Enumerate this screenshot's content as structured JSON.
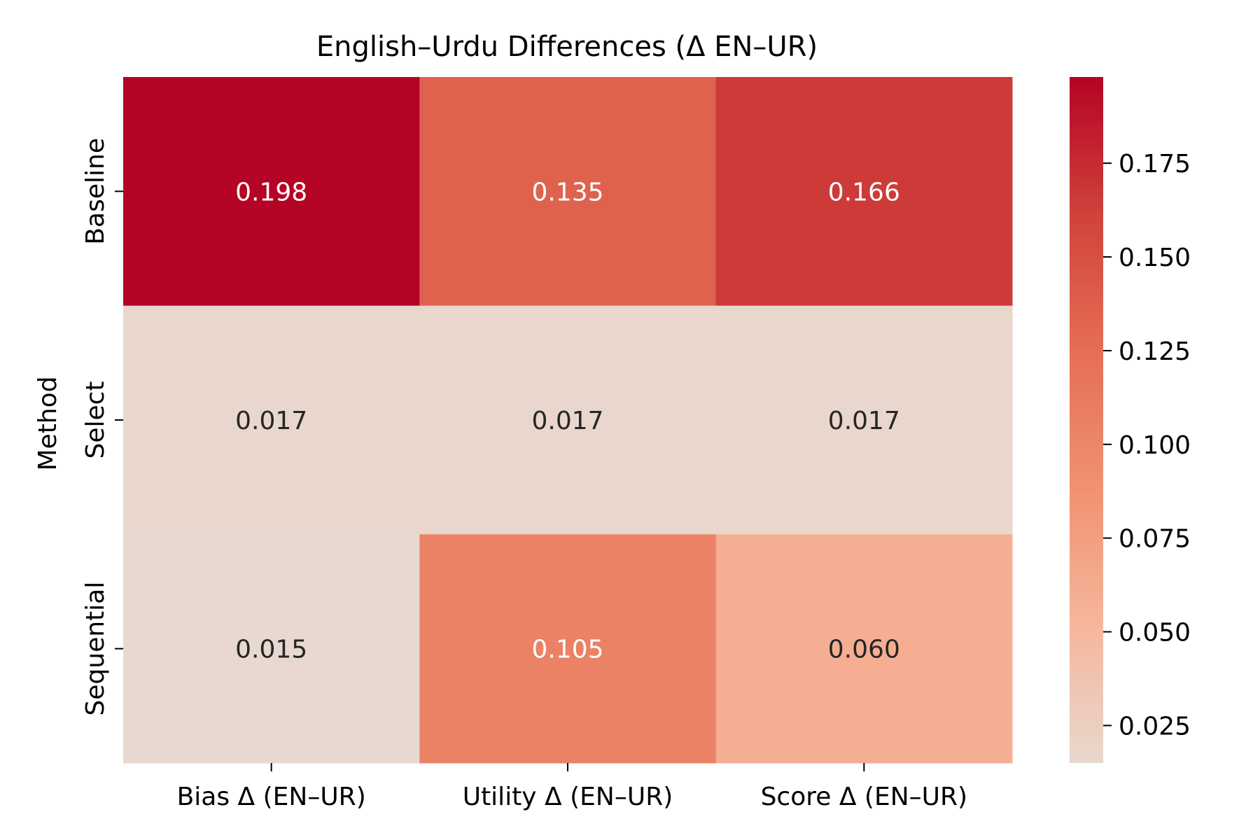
{
  "chart_data": {
    "type": "heatmap",
    "title": "English–Urdu Differences (Δ EN–UR)",
    "xlabel": "",
    "ylabel": "Method",
    "x_categories": [
      "Bias Δ (EN–UR)",
      "Utility Δ (EN–UR)",
      "Score Δ (EN–UR)"
    ],
    "y_categories": [
      "Baseline",
      "Select",
      "Sequential"
    ],
    "values": [
      [
        0.198,
        0.135,
        0.166
      ],
      [
        0.017,
        0.017,
        0.017
      ],
      [
        0.015,
        0.105,
        0.06
      ]
    ],
    "cell_labels": [
      [
        "0.198",
        "0.135",
        "0.166"
      ],
      [
        "0.017",
        "0.017",
        "0.017"
      ],
      [
        "0.015",
        "0.105",
        "0.060"
      ]
    ],
    "colorbar": {
      "vmin": 0.015,
      "vmax": 0.198,
      "ticks": [
        0.025,
        0.05,
        0.075,
        0.1,
        0.125,
        0.15,
        0.175
      ],
      "tick_labels": [
        "0.025",
        "0.050",
        "0.075",
        "0.100",
        "0.125",
        "0.150",
        "0.175"
      ]
    },
    "colormap": [
      "#e8d8cf",
      "#f6b69b",
      "#f09272",
      "#e56e56",
      "#d0423a",
      "#b50325"
    ],
    "grid": false,
    "legend": "colorbar-right"
  }
}
